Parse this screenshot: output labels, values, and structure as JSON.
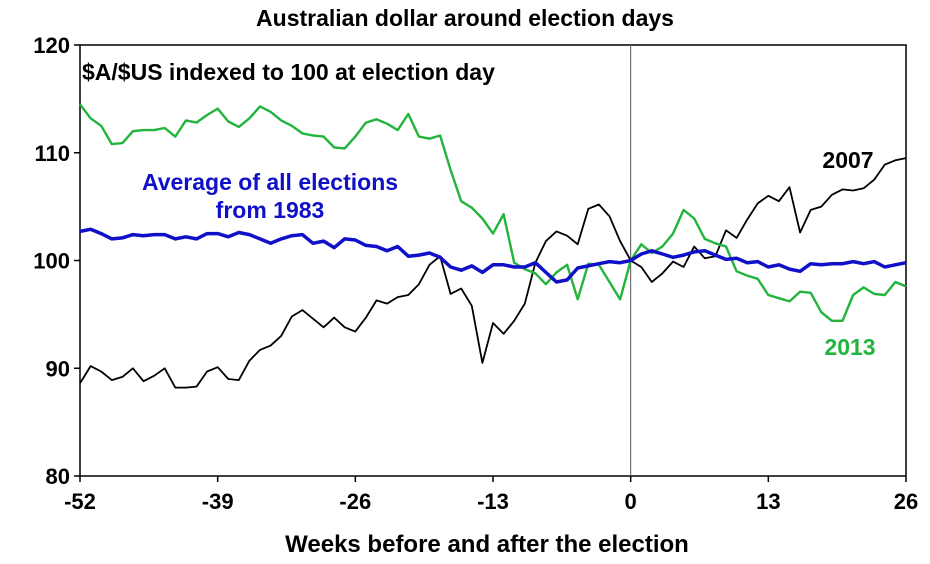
{
  "chart_data": {
    "type": "line",
    "title": "Australian dollar around election days",
    "subtitle": "$A/$US indexed to 100 at election day",
    "xlabel": "Weeks before and after the election",
    "ylabel": "",
    "xlim": [
      -52,
      26
    ],
    "ylim": [
      80,
      120
    ],
    "xticks": [
      -52,
      -39,
      -26,
      -13,
      0,
      13,
      26
    ],
    "yticks": [
      80,
      90,
      100,
      110,
      120
    ],
    "reference_line_x": 0,
    "grid": false,
    "legend": "inline labels",
    "series": [
      {
        "key": "average",
        "name": "Average of all elections from 1983",
        "label_lines": [
          "Average of all elections",
          "from 1983"
        ],
        "color": "#1010c8",
        "points": [
          [
            -52,
            102.7
          ],
          [
            -51,
            102.9
          ],
          [
            -50,
            102.5
          ],
          [
            -49,
            102.0
          ],
          [
            -48,
            102.1
          ],
          [
            -47,
            102.4
          ],
          [
            -46,
            102.3
          ],
          [
            -45,
            102.4
          ],
          [
            -44,
            102.4
          ],
          [
            -43,
            102.0
          ],
          [
            -42,
            102.2
          ],
          [
            -41,
            102.0
          ],
          [
            -40,
            102.5
          ],
          [
            -39,
            102.5
          ],
          [
            -38,
            102.2
          ],
          [
            -37,
            102.6
          ],
          [
            -36,
            102.4
          ],
          [
            -35,
            102.0
          ],
          [
            -34,
            101.6
          ],
          [
            -33,
            102.0
          ],
          [
            -32,
            102.3
          ],
          [
            -31,
            102.4
          ],
          [
            -30,
            101.6
          ],
          [
            -29,
            101.8
          ],
          [
            -28,
            101.2
          ],
          [
            -27,
            102.0
          ],
          [
            -26,
            101.9
          ],
          [
            -25,
            101.4
          ],
          [
            -24,
            101.3
          ],
          [
            -23,
            100.9
          ],
          [
            -22,
            101.3
          ],
          [
            -21,
            100.4
          ],
          [
            -20,
            100.5
          ],
          [
            -19,
            100.7
          ],
          [
            -18,
            100.3
          ],
          [
            -17,
            99.4
          ],
          [
            -16,
            99.1
          ],
          [
            -15,
            99.5
          ],
          [
            -14,
            98.9
          ],
          [
            -13,
            99.6
          ],
          [
            -12,
            99.6
          ],
          [
            -11,
            99.4
          ],
          [
            -10,
            99.4
          ],
          [
            -9,
            99.8
          ],
          [
            -8,
            98.9
          ],
          [
            -7,
            98.0
          ],
          [
            -6,
            98.2
          ],
          [
            -5,
            99.3
          ],
          [
            -4,
            99.5
          ],
          [
            -3,
            99.7
          ],
          [
            -2,
            99.9
          ],
          [
            -1,
            99.8
          ],
          [
            0,
            100.0
          ],
          [
            1,
            100.6
          ],
          [
            2,
            100.9
          ],
          [
            3,
            100.6
          ],
          [
            4,
            100.3
          ],
          [
            5,
            100.5
          ],
          [
            6,
            100.8
          ],
          [
            7,
            100.9
          ],
          [
            8,
            100.5
          ],
          [
            9,
            100.1
          ],
          [
            10,
            100.2
          ],
          [
            11,
            99.8
          ],
          [
            12,
            99.9
          ],
          [
            13,
            99.4
          ],
          [
            14,
            99.6
          ],
          [
            15,
            99.2
          ],
          [
            16,
            99.0
          ],
          [
            17,
            99.7
          ],
          [
            18,
            99.6
          ],
          [
            19,
            99.7
          ],
          [
            20,
            99.7
          ],
          [
            21,
            99.9
          ],
          [
            22,
            99.7
          ],
          [
            23,
            99.9
          ],
          [
            24,
            99.4
          ],
          [
            25,
            99.6
          ],
          [
            26,
            99.8
          ]
        ]
      },
      {
        "key": "y2007",
        "name": "2007",
        "label_lines": [
          "2007"
        ],
        "color": "#000000",
        "points": [
          [
            -52,
            88.6
          ],
          [
            -51,
            90.2
          ],
          [
            -50,
            89.7
          ],
          [
            -49,
            88.9
          ],
          [
            -48,
            89.2
          ],
          [
            -47,
            90.0
          ],
          [
            -46,
            88.8
          ],
          [
            -45,
            89.3
          ],
          [
            -44,
            90.0
          ],
          [
            -43,
            88.2
          ],
          [
            -42,
            88.2
          ],
          [
            -41,
            88.3
          ],
          [
            -40,
            89.7
          ],
          [
            -39,
            90.1
          ],
          [
            -38,
            89.0
          ],
          [
            -37,
            88.9
          ],
          [
            -36,
            90.7
          ],
          [
            -35,
            91.7
          ],
          [
            -34,
            92.1
          ],
          [
            -33,
            93.0
          ],
          [
            -32,
            94.8
          ],
          [
            -31,
            95.4
          ],
          [
            -30,
            94.6
          ],
          [
            -29,
            93.8
          ],
          [
            -28,
            94.7
          ],
          [
            -27,
            93.8
          ],
          [
            -26,
            93.4
          ],
          [
            -25,
            94.7
          ],
          [
            -24,
            96.3
          ],
          [
            -23,
            96.0
          ],
          [
            -22,
            96.6
          ],
          [
            -21,
            96.8
          ],
          [
            -20,
            97.8
          ],
          [
            -19,
            99.6
          ],
          [
            -18,
            100.4
          ],
          [
            -17,
            96.9
          ],
          [
            -16,
            97.4
          ],
          [
            -15,
            95.8
          ],
          [
            -14,
            90.5
          ],
          [
            -13,
            94.2
          ],
          [
            -12,
            93.2
          ],
          [
            -11,
            94.4
          ],
          [
            -10,
            96.0
          ],
          [
            -9,
            99.8
          ],
          [
            -8,
            101.8
          ],
          [
            -7,
            102.7
          ],
          [
            -6,
            102.3
          ],
          [
            -5,
            101.5
          ],
          [
            -4,
            104.8
          ],
          [
            -3,
            105.2
          ],
          [
            -2,
            104.1
          ],
          [
            -1,
            101.8
          ],
          [
            0,
            100.0
          ],
          [
            1,
            99.4
          ],
          [
            2,
            98.0
          ],
          [
            3,
            98.8
          ],
          [
            4,
            99.9
          ],
          [
            5,
            99.4
          ],
          [
            6,
            101.3
          ],
          [
            7,
            100.2
          ],
          [
            8,
            100.4
          ],
          [
            9,
            102.8
          ],
          [
            10,
            102.1
          ],
          [
            11,
            103.8
          ],
          [
            12,
            105.3
          ],
          [
            13,
            106.0
          ],
          [
            14,
            105.5
          ],
          [
            15,
            106.8
          ],
          [
            16,
            102.6
          ],
          [
            17,
            104.7
          ],
          [
            18,
            105.0
          ],
          [
            19,
            106.1
          ],
          [
            20,
            106.6
          ],
          [
            21,
            106.5
          ],
          [
            22,
            106.7
          ],
          [
            23,
            107.5
          ],
          [
            24,
            108.9
          ],
          [
            25,
            109.3
          ],
          [
            26,
            109.5
          ]
        ]
      },
      {
        "key": "y2013",
        "name": "2013",
        "label_lines": [
          "2013"
        ],
        "color": "#22b43c",
        "points": [
          [
            -52,
            114.5
          ],
          [
            -51,
            113.2
          ],
          [
            -50,
            112.5
          ],
          [
            -49,
            110.8
          ],
          [
            -48,
            110.9
          ],
          [
            -47,
            112.0
          ],
          [
            -46,
            112.1
          ],
          [
            -45,
            112.1
          ],
          [
            -44,
            112.3
          ],
          [
            -43,
            111.5
          ],
          [
            -42,
            113.0
          ],
          [
            -41,
            112.8
          ],
          [
            -40,
            113.5
          ],
          [
            -39,
            114.1
          ],
          [
            -38,
            112.9
          ],
          [
            -37,
            112.4
          ],
          [
            -36,
            113.2
          ],
          [
            -35,
            114.3
          ],
          [
            -34,
            113.8
          ],
          [
            -33,
            113.0
          ],
          [
            -32,
            112.5
          ],
          [
            -31,
            111.8
          ],
          [
            -30,
            111.6
          ],
          [
            -29,
            111.5
          ],
          [
            -28,
            110.5
          ],
          [
            -27,
            110.4
          ],
          [
            -26,
            111.5
          ],
          [
            -25,
            112.8
          ],
          [
            -24,
            113.1
          ],
          [
            -23,
            112.7
          ],
          [
            -22,
            112.1
          ],
          [
            -21,
            113.6
          ],
          [
            -20,
            111.5
          ],
          [
            -19,
            111.3
          ],
          [
            -18,
            111.6
          ],
          [
            -17,
            108.4
          ],
          [
            -16,
            105.5
          ],
          [
            -15,
            104.9
          ],
          [
            -14,
            103.9
          ],
          [
            -13,
            102.5
          ],
          [
            -12,
            104.3
          ],
          [
            -11,
            99.8
          ],
          [
            -10,
            99.2
          ],
          [
            -9,
            98.8
          ],
          [
            -8,
            97.8
          ],
          [
            -7,
            98.9
          ],
          [
            -6,
            99.6
          ],
          [
            -5,
            96.4
          ],
          [
            -4,
            99.7
          ],
          [
            -3,
            99.6
          ],
          [
            -2,
            98.0
          ],
          [
            -1,
            96.4
          ],
          [
            0,
            100.0
          ],
          [
            1,
            101.5
          ],
          [
            2,
            100.7
          ],
          [
            3,
            101.3
          ],
          [
            4,
            102.5
          ],
          [
            5,
            104.7
          ],
          [
            6,
            103.9
          ],
          [
            7,
            102.0
          ],
          [
            8,
            101.6
          ],
          [
            9,
            101.3
          ],
          [
            10,
            99.0
          ],
          [
            11,
            98.6
          ],
          [
            12,
            98.3
          ],
          [
            13,
            96.8
          ],
          [
            14,
            96.5
          ],
          [
            15,
            96.2
          ],
          [
            16,
            97.1
          ],
          [
            17,
            97.0
          ],
          [
            18,
            95.2
          ],
          [
            19,
            94.4
          ],
          [
            20,
            94.4
          ],
          [
            21,
            96.8
          ],
          [
            22,
            97.5
          ],
          [
            23,
            96.9
          ],
          [
            24,
            96.8
          ],
          [
            25,
            98.0
          ],
          [
            26,
            97.6
          ]
        ]
      }
    ]
  }
}
